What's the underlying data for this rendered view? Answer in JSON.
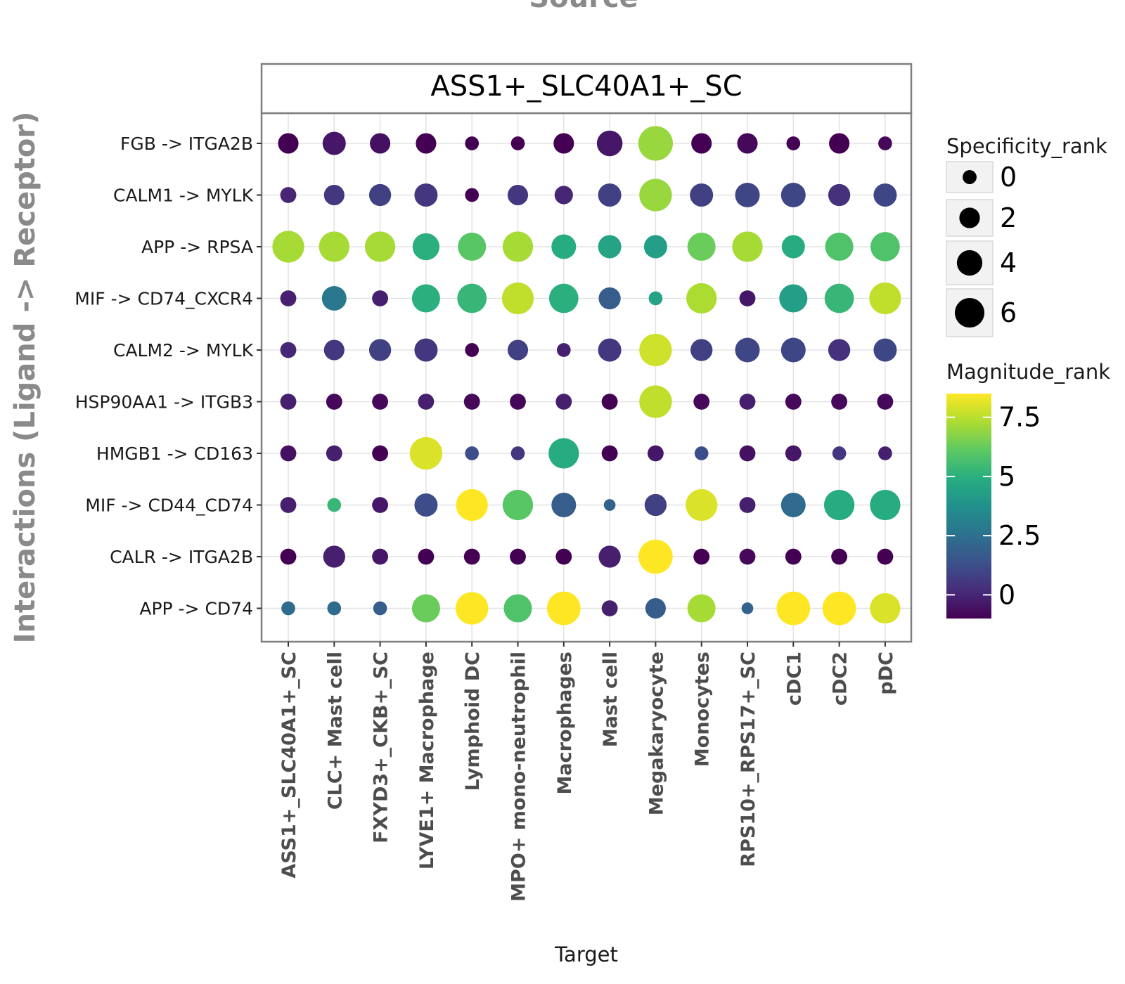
{
  "chart_data": {
    "type": "scatter",
    "title": "Source",
    "facet_label": "ASS1+_SLC40A1+_SC",
    "xlabel": "Target",
    "ylabel": "Interactions (Ligand -> Receptor)",
    "grid": true,
    "legend_placement": "right",
    "x_categories": [
      "ASS1+_SLC40A1+_SC",
      "CLC+ Mast cell",
      "FXYD3+_CKB+_SC",
      "LYVE1+ Macrophage",
      "Lymphoid DC",
      "MPO+ mono-neutrophil",
      "Macrophages",
      "Mast cell",
      "Megakaryocyte",
      "Monocytes",
      "RPS10+_RPS17+_SC",
      "cDC1",
      "cDC2",
      "pDC"
    ],
    "y_categories": [
      "FGB -> ITGA2B",
      "CALM1 -> MYLK",
      "APP -> RPSA",
      "MIF -> CD74_CXCR4",
      "CALM2 -> MYLK",
      "HSP90AA1 -> ITGB3",
      "HMGB1 -> CD163",
      "MIF -> CD44_CD74",
      "CALR -> ITGA2B",
      "APP -> CD74"
    ],
    "size_legend": {
      "title": "Specificity_rank",
      "values": [
        0,
        2,
        4,
        6
      ],
      "labels": [
        "0",
        "2",
        "4",
        "6"
      ],
      "range": [
        -1,
        7.5
      ]
    },
    "color_legend": {
      "title": "Magnitude_rank",
      "range": [
        -1,
        8.5
      ],
      "ticks": [
        0,
        2.5,
        5,
        7.5
      ],
      "tick_labels": [
        "0",
        "2.5",
        "5",
        "7.5"
      ],
      "colormap": "viridis"
    },
    "points_size": [
      [
        1.4,
        2.3,
        1.4,
        1.4,
        -0.3,
        -0.3,
        1.4,
        3.2,
        7.2,
        1.4,
        1.4,
        -0.3,
        1.4,
        -0.3
      ],
      [
        0.2,
        1.4,
        1.9,
        2.3,
        -0.3,
        1.4,
        0.8,
        2.3,
        6.2,
        2.3,
        2.8,
        2.8,
        1.9,
        2.3
      ],
      [
        5.8,
        5.2,
        5.2,
        3.7,
        4.2,
        5.2,
        2.8,
        2.3,
        2.3,
        4.2,
        5.2,
        2.3,
        4.2,
        4.7
      ],
      [
        0.2,
        2.8,
        0.2,
        4.2,
        4.7,
        5.8,
        4.7,
        1.9,
        -0.3,
        5.2,
        0.2,
        4.2,
        4.7,
        5.8
      ],
      [
        0.2,
        1.4,
        1.9,
        2.3,
        -0.3,
        1.4,
        -0.3,
        2.3,
        6.2,
        1.9,
        2.8,
        2.8,
        1.9,
        2.3
      ],
      [
        0.2,
        0.2,
        0.2,
        0.2,
        0.2,
        0.2,
        0.2,
        0.2,
        6.2,
        0.2,
        0.2,
        0.2,
        0.2,
        0.2
      ],
      [
        0.2,
        0.2,
        0.2,
        6.2,
        -0.3,
        -0.3,
        5.2,
        0.2,
        0.2,
        -0.3,
        0.2,
        0.2,
        -0.3,
        -0.3
      ],
      [
        0.2,
        -0.3,
        0.2,
        2.3,
        5.8,
        5.2,
        2.8,
        -0.7,
        1.9,
        5.8,
        0.2,
        2.8,
        5.2,
        5.2
      ],
      [
        0.2,
        1.9,
        0.2,
        0.2,
        0.2,
        0.2,
        0.2,
        1.9,
        7.0,
        0.2,
        0.2,
        0.2,
        0.2,
        0.2
      ],
      [
        -0.3,
        -0.3,
        -0.3,
        4.2,
        6.2,
        4.2,
        6.7,
        0.2,
        1.4,
        4.2,
        -0.7,
        6.7,
        6.7,
        5.2
      ]
    ],
    "points_magnitude": [
      [
        -1.0,
        -0.4,
        -0.6,
        -1.0,
        -1.0,
        -1.0,
        -1.0,
        -0.4,
        7.0,
        -1.0,
        -0.8,
        -1.0,
        -1.0,
        -0.8
      ],
      [
        0.0,
        0.5,
        0.8,
        0.5,
        -1.0,
        0.5,
        0.0,
        0.8,
        7.0,
        0.8,
        1.0,
        1.0,
        0.3,
        1.0
      ],
      [
        7.2,
        7.2,
        7.2,
        5.0,
        6.0,
        7.2,
        4.8,
        4.5,
        4.3,
        6.3,
        7.2,
        4.8,
        5.8,
        5.8
      ],
      [
        -0.2,
        2.8,
        -0.2,
        5.0,
        5.3,
        7.6,
        5.0,
        1.8,
        4.5,
        7.3,
        -0.4,
        4.3,
        5.3,
        7.6
      ],
      [
        0.0,
        0.5,
        0.8,
        0.5,
        -1.0,
        0.8,
        -0.2,
        0.5,
        7.8,
        0.8,
        1.0,
        1.0,
        0.3,
        1.0
      ],
      [
        -0.2,
        -0.8,
        -0.8,
        -0.2,
        -0.8,
        -0.8,
        -0.2,
        -1.0,
        7.6,
        -0.8,
        -0.2,
        -0.8,
        -0.8,
        -0.8
      ],
      [
        -0.6,
        -0.2,
        -1.0,
        8.0,
        1.2,
        0.5,
        4.8,
        -1.0,
        -0.4,
        1.2,
        -0.6,
        -0.4,
        0.5,
        -0.2
      ],
      [
        -0.2,
        5.3,
        -0.4,
        1.2,
        8.6,
        6.0,
        1.8,
        2.0,
        0.8,
        8.0,
        -0.2,
        2.3,
        4.8,
        4.8
      ],
      [
        -1.0,
        -0.2,
        -0.4,
        -1.0,
        -1.0,
        -1.0,
        -1.0,
        -0.2,
        8.9,
        -1.0,
        -0.8,
        -1.0,
        -1.0,
        -1.0
      ],
      [
        2.3,
        2.3,
        1.8,
        6.3,
        9.2,
        5.8,
        9.2,
        -0.2,
        1.8,
        7.2,
        2.0,
        9.2,
        8.8,
        8.0
      ]
    ]
  }
}
